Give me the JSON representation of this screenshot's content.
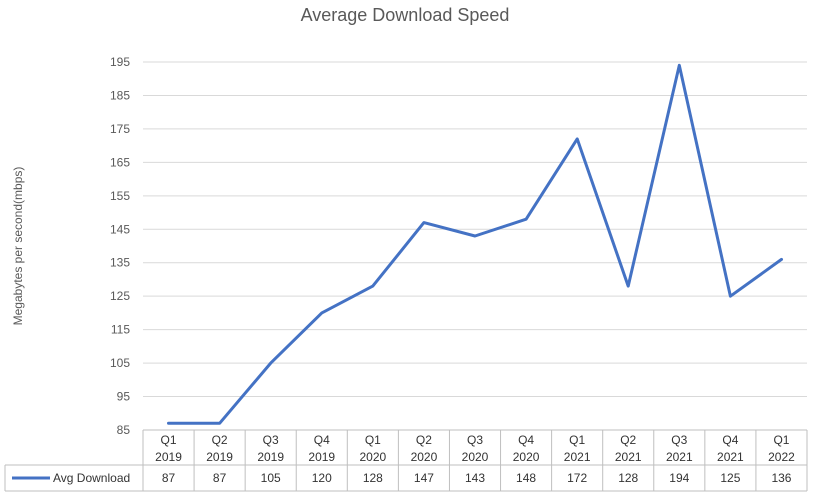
{
  "chart_data": {
    "type": "line",
    "title": "Average Download Speed",
    "ylabel": "Megabytes per second(mbps)",
    "ylim": [
      85,
      200
    ],
    "yticks": [
      85,
      95,
      105,
      115,
      125,
      135,
      145,
      155,
      165,
      175,
      185,
      195
    ],
    "grid": true,
    "legend": "data-table-left",
    "categories": [
      [
        "Q1",
        "2019"
      ],
      [
        "Q2",
        "2019"
      ],
      [
        "Q3",
        "2019"
      ],
      [
        "Q4",
        "2019"
      ],
      [
        "Q1",
        "2020"
      ],
      [
        "Q2",
        "2020"
      ],
      [
        "Q3",
        "2020"
      ],
      [
        "Q4",
        "2020"
      ],
      [
        "Q1",
        "2021"
      ],
      [
        "Q2",
        "2021"
      ],
      [
        "Q3",
        "2021"
      ],
      [
        "Q4",
        "2021"
      ],
      [
        "Q1",
        "2022"
      ]
    ],
    "series": [
      {
        "name": "Avg Download",
        "color": "#4472C4",
        "values": [
          87,
          87,
          105,
          120,
          128,
          147,
          143,
          148,
          172,
          128,
          194,
          125,
          136
        ]
      }
    ]
  }
}
